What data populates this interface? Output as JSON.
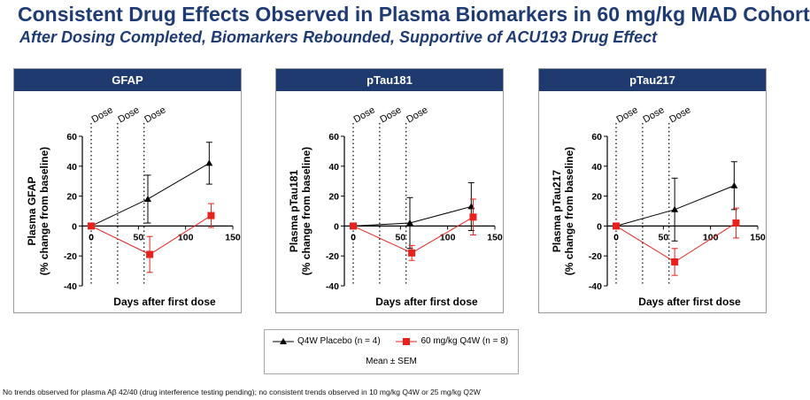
{
  "title": "Consistent Drug Effects Observed in Plasma Biomarkers in 60 mg/kg MAD Cohort",
  "subtitle": "After Dosing Completed, Biomarkers Rebounded, Supportive of ACU193 Drug Effect",
  "legend": {
    "placebo_label": "Q4W Placebo (n = 4)",
    "drug_label": "60 mg/kg Q4W (n = 8)",
    "note": "Mean ± SEM"
  },
  "colors": {
    "header": "#1f3a6e",
    "title": "#1f3b73",
    "placebo": "#000000",
    "drug": "#e8211c"
  },
  "footnote": "No trends observed for plasma Aβ 42/40 (drug interference testing pending); no consistent trends observed in 10 mg/kg Q4W or 25 mg/kg Q2W",
  "chart_data": [
    {
      "type": "line",
      "title": "GFAP",
      "xlabel": "Days after first dose",
      "ylabel_line1": "Plasma GFAP",
      "ylabel_line2": "(% change from baseline)",
      "xlim": [
        0,
        150
      ],
      "ylim": [
        -40,
        60
      ],
      "xticks": [
        0,
        50,
        100,
        150
      ],
      "yticks": [
        -40,
        -20,
        0,
        20,
        40,
        60
      ],
      "dose_label": "Dose",
      "dose_days": [
        0,
        28,
        56
      ],
      "series": [
        {
          "name": "Q4W Placebo (n = 4)",
          "x": [
            0,
            60,
            125
          ],
          "y": [
            0,
            18,
            42
          ],
          "err_up": [
            0,
            16,
            14
          ],
          "err_down": [
            0,
            16,
            14
          ]
        },
        {
          "name": "60 mg/kg Q4W (n = 8)",
          "x": [
            0,
            62,
            127
          ],
          "y": [
            0,
            -19,
            7
          ],
          "err_up": [
            0,
            12,
            8
          ],
          "err_down": [
            0,
            12,
            8
          ]
        }
      ]
    },
    {
      "type": "line",
      "title": "pTau181",
      "xlabel": "Days after first dose",
      "ylabel_line1": "Plasma pTau181",
      "ylabel_line2": "(% change from baseline)",
      "xlim": [
        0,
        150
      ],
      "ylim": [
        -40,
        60
      ],
      "xticks": [
        0,
        50,
        100,
        150
      ],
      "yticks": [
        -40,
        -20,
        0,
        20,
        40,
        60
      ],
      "dose_label": "Dose",
      "dose_days": [
        0,
        28,
        56
      ],
      "series": [
        {
          "name": "Q4W Placebo (n = 4)",
          "x": [
            0,
            60,
            125
          ],
          "y": [
            0,
            2,
            13
          ],
          "err_up": [
            0,
            17,
            16
          ],
          "err_down": [
            0,
            17,
            16
          ]
        },
        {
          "name": "60 mg/kg Q4W (n = 8)",
          "x": [
            0,
            62,
            127
          ],
          "y": [
            0,
            -18,
            6
          ],
          "err_up": [
            0,
            5,
            12
          ],
          "err_down": [
            0,
            5,
            12
          ]
        }
      ]
    },
    {
      "type": "line",
      "title": "pTau217",
      "xlabel": "Days after first dose",
      "ylabel_line1": "Plasma pTau217",
      "ylabel_line2": "(% change from baseline)",
      "xlim": [
        0,
        150
      ],
      "ylim": [
        -40,
        60
      ],
      "xticks": [
        0,
        50,
        100,
        150
      ],
      "yticks": [
        -40,
        -20,
        0,
        20,
        40,
        60
      ],
      "dose_label": "Dose",
      "dose_days": [
        0,
        28,
        56
      ],
      "series": [
        {
          "name": "Q4W Placebo (n = 4)",
          "x": [
            0,
            62,
            125
          ],
          "y": [
            0,
            11,
            27
          ],
          "err_up": [
            0,
            21,
            16
          ],
          "err_down": [
            0,
            21,
            16
          ]
        },
        {
          "name": "60 mg/kg Q4W (n = 8)",
          "x": [
            0,
            62,
            127
          ],
          "y": [
            0,
            -24,
            2
          ],
          "err_up": [
            0,
            9,
            10
          ],
          "err_down": [
            0,
            9,
            10
          ]
        }
      ]
    }
  ]
}
